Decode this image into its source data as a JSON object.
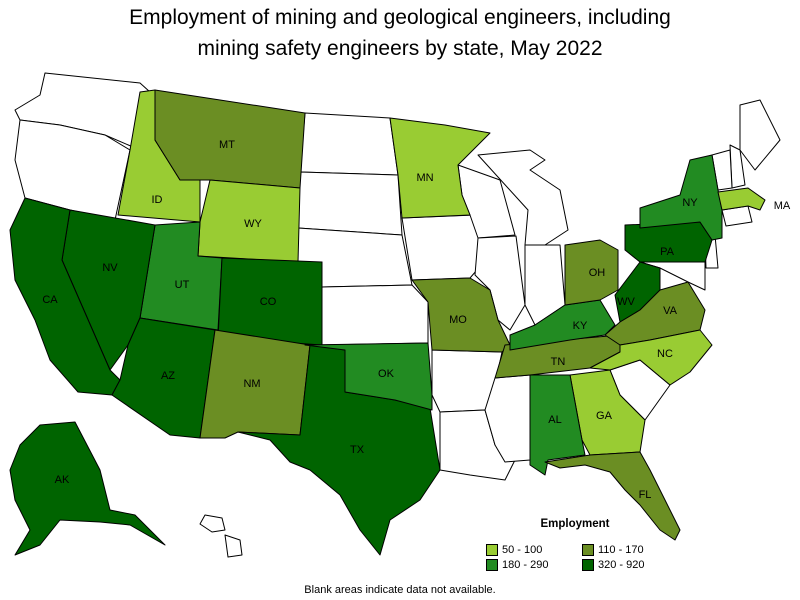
{
  "title": {
    "line1": "Employment of mining and geological engineers, including",
    "line2": "mining safety engineers by state, May 2022"
  },
  "colors": {
    "blank": "#ffffff",
    "50_100": "#99cc33",
    "110_170": "#6b8e23",
    "180_290": "#228b22",
    "320_920": "#006400"
  },
  "states": [
    {
      "abbr": "AK",
      "bin": "320_920"
    },
    {
      "abbr": "AL",
      "bin": "180_290"
    },
    {
      "abbr": "AZ",
      "bin": "320_920"
    },
    {
      "abbr": "CA",
      "bin": "320_920"
    },
    {
      "abbr": "CO",
      "bin": "320_920"
    },
    {
      "abbr": "FL",
      "bin": "110_170"
    },
    {
      "abbr": "GA",
      "bin": "50_100"
    },
    {
      "abbr": "ID",
      "bin": "50_100"
    },
    {
      "abbr": "KY",
      "bin": "180_290"
    },
    {
      "abbr": "MA",
      "bin": "50_100"
    },
    {
      "abbr": "MN",
      "bin": "50_100"
    },
    {
      "abbr": "MO",
      "bin": "110_170"
    },
    {
      "abbr": "MT",
      "bin": "110_170"
    },
    {
      "abbr": "NC",
      "bin": "50_100"
    },
    {
      "abbr": "NM",
      "bin": "110_170"
    },
    {
      "abbr": "NV",
      "bin": "320_920"
    },
    {
      "abbr": "NY",
      "bin": "180_290"
    },
    {
      "abbr": "OH",
      "bin": "110_170"
    },
    {
      "abbr": "OK",
      "bin": "180_290"
    },
    {
      "abbr": "PA",
      "bin": "320_920"
    },
    {
      "abbr": "TN",
      "bin": "110_170"
    },
    {
      "abbr": "TX",
      "bin": "320_920"
    },
    {
      "abbr": "UT",
      "bin": "180_290"
    },
    {
      "abbr": "VA",
      "bin": "110_170"
    },
    {
      "abbr": "WV",
      "bin": "320_920"
    },
    {
      "abbr": "WY",
      "bin": "50_100"
    }
  ],
  "legend": {
    "title": "Employment",
    "items": [
      {
        "label": "50 - 100",
        "bin": "50_100"
      },
      {
        "label": "110 - 170",
        "bin": "110_170"
      },
      {
        "label": "180 - 290",
        "bin": "180_290"
      },
      {
        "label": "320 - 920",
        "bin": "320_920"
      }
    ]
  },
  "note": "Blank areas indicate data not available."
}
